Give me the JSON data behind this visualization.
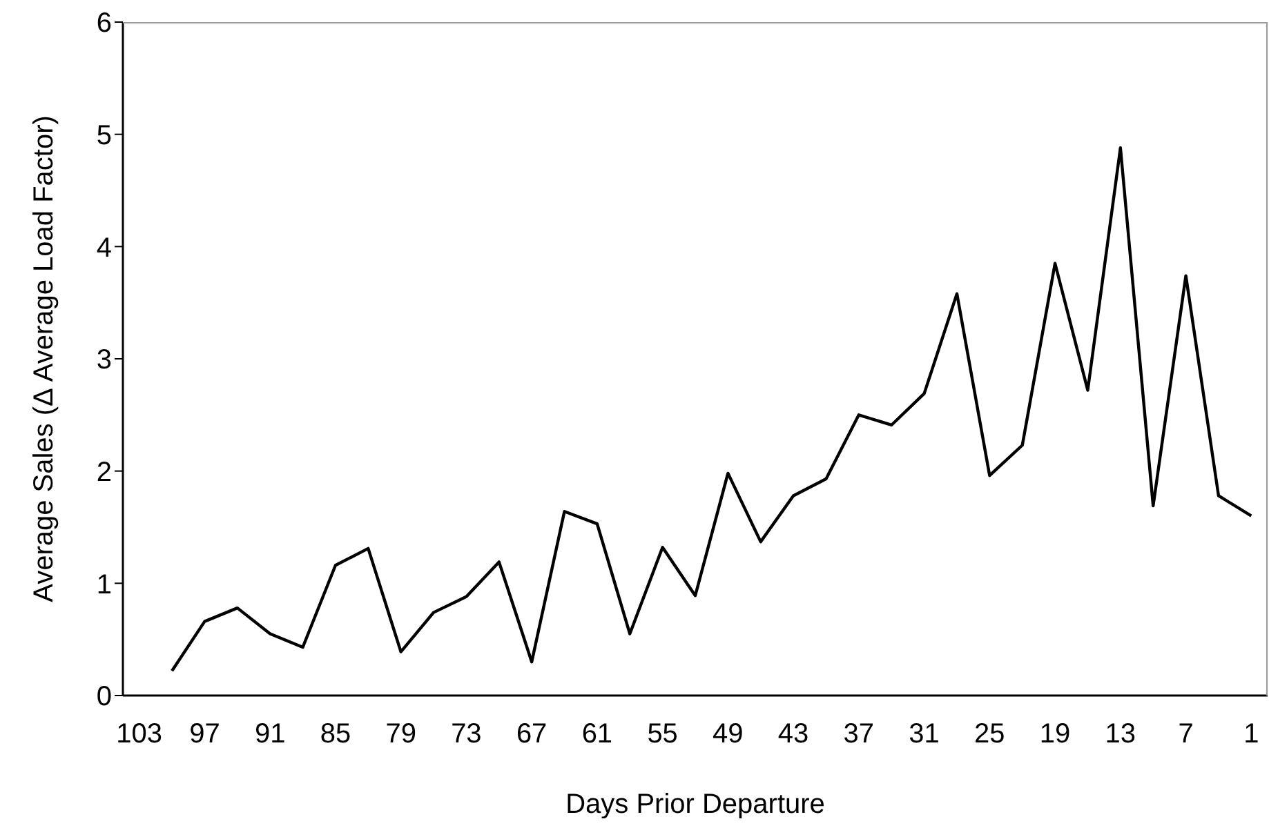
{
  "chart_data": {
    "type": "line",
    "xlabel": "Days Prior Departure",
    "ylabel": "Average Sales (Δ Average Load Factor)",
    "categories": [
      "103",
      null,
      "97",
      null,
      "91",
      null,
      "85",
      null,
      "79",
      null,
      "73",
      null,
      "67",
      null,
      "61",
      null,
      "55",
      null,
      "49",
      null,
      "43",
      null,
      "37",
      null,
      "31",
      null,
      "25",
      null,
      "19",
      null,
      "13",
      null,
      "7",
      null,
      "1"
    ],
    "series": [
      {
        "color": "#000000",
        "values": [
          null,
          0.22,
          0.66,
          0.78,
          0.55,
          0.43,
          1.16,
          1.31,
          0.39,
          0.74,
          0.88,
          1.19,
          0.3,
          1.64,
          1.53,
          0.55,
          1.32,
          0.89,
          1.98,
          1.37,
          1.78,
          1.93,
          2.5,
          2.41,
          2.69,
          3.58,
          1.96,
          2.23,
          3.85,
          2.72,
          4.88,
          1.69,
          3.74,
          1.78,
          1.6
        ]
      }
    ],
    "ylim": [
      0,
      6
    ],
    "yticks": [
      0,
      1,
      2,
      3,
      4,
      5,
      6
    ],
    "grid": false,
    "legend": false,
    "marker": "none",
    "line_style": "solid"
  }
}
